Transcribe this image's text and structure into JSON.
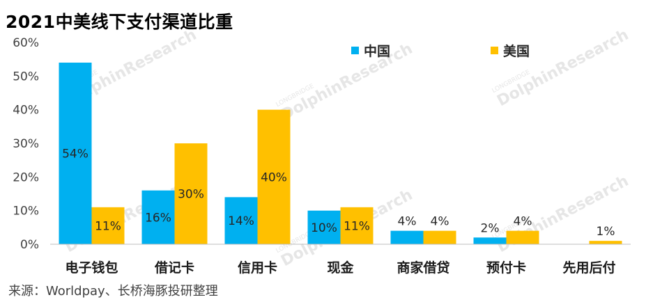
{
  "title": "2021中美线下支付渠道比重",
  "source": "来源：Worldpay、长桥海豚投研整理",
  "watermark": {
    "brand": "DolphinResearch",
    "sub": "LONGBRIDGE"
  },
  "colors": {
    "china": "#00b0f0",
    "usa": "#ffc000"
  },
  "chart_data": {
    "type": "bar",
    "title": "2021中美线下支付渠道比重",
    "categories": [
      "电子钱包",
      "借记卡",
      "信用卡",
      "现金",
      "商家借贷",
      "预付卡",
      "先用后付"
    ],
    "series": [
      {
        "name": "中国",
        "color": "#00b0f0",
        "values": [
          54,
          16,
          14,
          10,
          4,
          2,
          null
        ],
        "labels": [
          "54%",
          "16%",
          "14%",
          "10%",
          "4%",
          "2%",
          ""
        ]
      },
      {
        "name": "美国",
        "color": "#ffc000",
        "values": [
          11,
          30,
          40,
          11,
          4,
          4,
          1
        ],
        "labels": [
          "11%",
          "30%",
          "40%",
          "11%",
          "4%",
          "4%",
          "1%"
        ]
      }
    ],
    "ylim": [
      0,
      60
    ],
    "yticks": [
      "0%",
      "10%",
      "20%",
      "30%",
      "40%",
      "50%",
      "60%"
    ],
    "grid": false,
    "legend": "top"
  }
}
